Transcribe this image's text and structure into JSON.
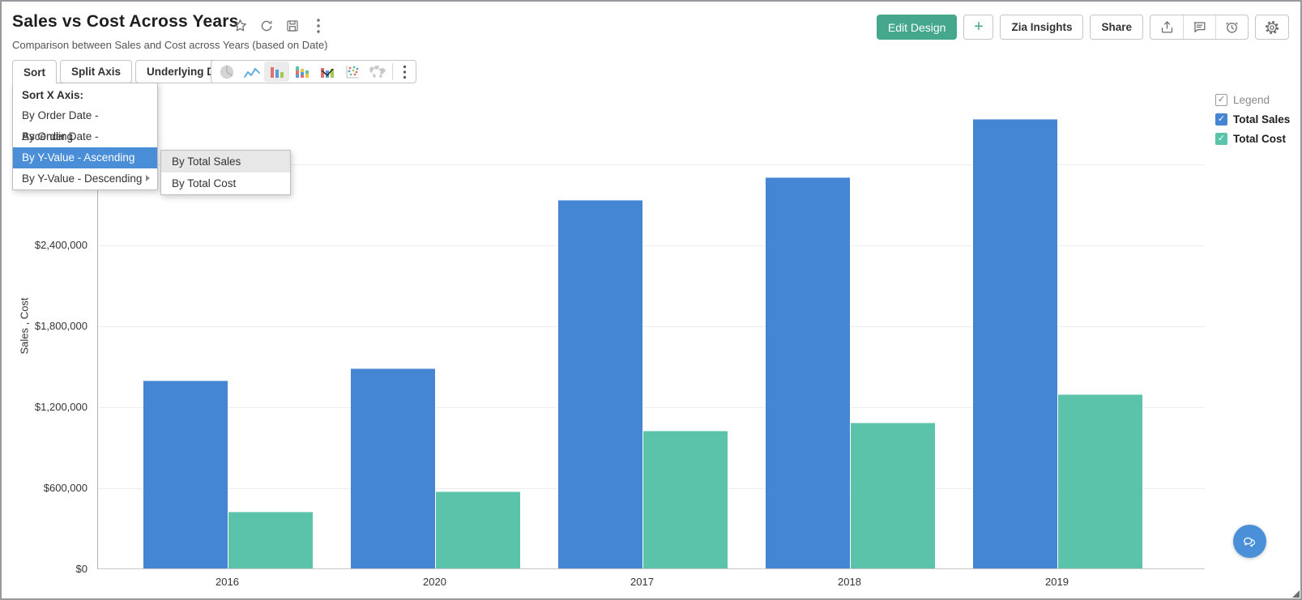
{
  "header": {
    "title": "Sales vs Cost Across Years",
    "subtitle": "Comparison between Sales and Cost across Years (based on Date)",
    "title_icons": [
      "favorite-star-icon",
      "refresh-icon",
      "save-icon",
      "more-options-icon"
    ],
    "actions": {
      "edit_design": "Edit Design",
      "add": "+",
      "zia_insights": "Zia Insights",
      "share": "Share",
      "action_icons": [
        "export-icon",
        "comment-icon",
        "alarm-icon",
        "settings-gear-icon"
      ]
    }
  },
  "toolbar": {
    "tabs": [
      {
        "label": "Sort",
        "active": true
      },
      {
        "label": "Split Axis",
        "active": false
      },
      {
        "label": "Underlying Data",
        "active": false
      }
    ],
    "chart_type_icons": [
      "pie-chart-icon",
      "line-chart-icon",
      "bar-chart-icon",
      "stacked-bar-icon",
      "combo-chart-icon",
      "scatter-plot-icon",
      "map-chart-icon",
      "more-chart-types-icon"
    ],
    "selected_chart_type": "bar-chart-icon"
  },
  "sort_menu": {
    "header": "Sort X Axis:",
    "items": [
      "By Order Date - Ascending",
      "By Order Date - Descending",
      "By Y-Value - Ascending",
      "By Y-Value - Descending"
    ],
    "active_item": "By Y-Value - Ascending",
    "highlight_color": "#4a8ed8",
    "submenu": {
      "items": [
        "By Total Sales",
        "By Total Cost"
      ],
      "hovered_item": "By Total Sales"
    }
  },
  "legend": {
    "title": "Legend",
    "check": "✓",
    "items": [
      {
        "label": "Total Sales",
        "color": "#4486d4",
        "checked": true
      },
      {
        "label": "Total Cost",
        "color": "#5ac3a9",
        "checked": true
      }
    ]
  },
  "chart_data": {
    "type": "bar",
    "title": "Sales vs Cost Across Years",
    "xlabel": "",
    "ylabel": "Sales , Cost",
    "categories": [
      "2016",
      "2020",
      "2017",
      "2018",
      "2019"
    ],
    "series": [
      {
        "name": "Total Sales",
        "color": "#4486d4",
        "values": [
          1390000,
          1480000,
          2730000,
          2900000,
          3330000
        ]
      },
      {
        "name": "Total Cost",
        "color": "#5ac3a9",
        "values": [
          420000,
          570000,
          1020000,
          1080000,
          1290000
        ]
      }
    ],
    "ylim": [
      0,
      3600000
    ],
    "ytick_values": [
      0,
      600000,
      1200000,
      1800000,
      2400000
    ],
    "ytick_labels": [
      "$0",
      "$600,000",
      "$1,200,000",
      "$1,800,000",
      "$2,400,000"
    ],
    "gridline_values": [
      600000,
      1200000,
      1800000,
      2400000,
      3000000
    ],
    "grid": true,
    "legend_position": "top-right",
    "currency": "$"
  }
}
